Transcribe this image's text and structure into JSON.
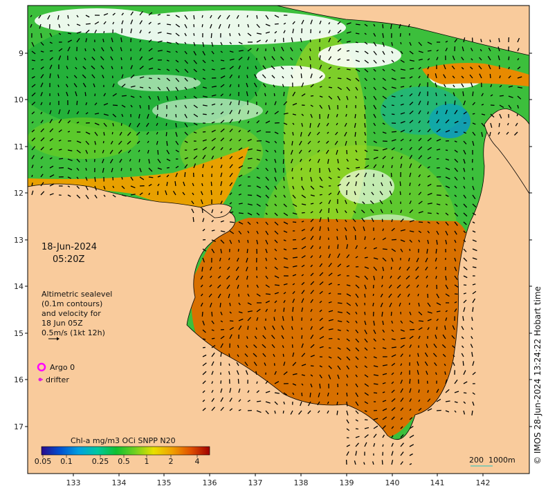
{
  "header": {
    "date": "18-Jun-2024",
    "time": "05:20Z"
  },
  "axes": {
    "lat_ticks": [
      "9",
      "10",
      "11",
      "12",
      "13",
      "14",
      "15",
      "16",
      "17"
    ],
    "lon_ticks": [
      "133",
      "134",
      "135",
      "136",
      "137",
      "138",
      "139",
      "140",
      "141",
      "142"
    ]
  },
  "altimetry": {
    "lines": [
      "Altimetric sealevel",
      "(0.1m contours)",
      "and velocity for",
      "18 Jun 05Z",
      "0.5m/s (1kt 12h)"
    ]
  },
  "legend": {
    "argo": "Argo 0",
    "drifter": "drifter",
    "argo_color": "#ff00ff",
    "drifter_color": "#e020e0"
  },
  "colorbar": {
    "title": "Chl-a mg/m3 OCi SNPP N20",
    "ticks": [
      "0.05",
      "0.1",
      "0.25",
      "0.5",
      "1",
      "2",
      "4"
    ],
    "stops": [
      "#2a0a8c",
      "#0050d0",
      "#00a0e0",
      "#00c8a0",
      "#10c030",
      "#70d020",
      "#e8e000",
      "#f0a000",
      "#e05000",
      "#a00000"
    ]
  },
  "scale": {
    "label1": "200",
    "label2": "1000m"
  },
  "credit": "© IMOS 28-Jun-2024 13:24:22 Hobart time",
  "colors": {
    "land": "#f9cb9c",
    "ocean_green": "#3cbf3c",
    "cloud": "#ffffff"
  }
}
